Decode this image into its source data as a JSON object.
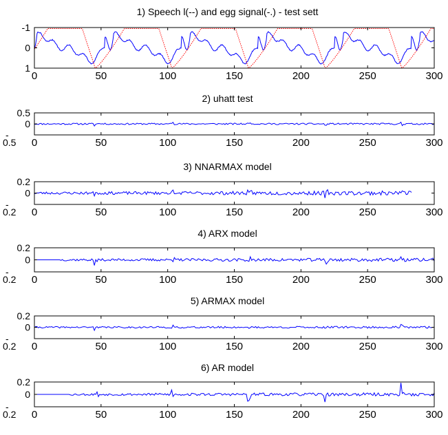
{
  "chart_data": [
    {
      "type": "line",
      "title": "1) Speech l(--) and egg signal(-.) - test sett",
      "xlim": [
        0,
        300
      ],
      "ylim": [
        -1,
        1
      ],
      "xticks": [
        "0",
        "50",
        "100",
        "150",
        "200",
        "250",
        "300"
      ],
      "yticks": [
        "-1",
        "0",
        "1"
      ],
      "series": [
        {
          "color": "#0000ff",
          "style": "solid",
          "kind": "speech",
          "period": 57.5,
          "phase": 0,
          "amplitude": 0.9
        },
        {
          "color": "#ff0000",
          "style": "dotted",
          "kind": "egg",
          "period": 57.5,
          "phase": 10,
          "amplitude": 1.0
        }
      ]
    },
    {
      "type": "line",
      "title": "2) uhatt test",
      "xlim": [
        0,
        300
      ],
      "ylim": [
        -0.5,
        0.5
      ],
      "xticks": [
        "0",
        "50",
        "100",
        "150",
        "200",
        "250",
        "300"
      ],
      "yticks": [
        "0.5",
        "0",
        "-"
      ],
      "ytick_bottom_extra": "0.5",
      "series": [
        {
          "color": "#0000ff",
          "style": "solid",
          "kind": "residual",
          "x_end": 300,
          "noise": 0.035,
          "spike": 0.12,
          "start_quiet": 0,
          "growth": 0.0,
          "seed": 11
        }
      ]
    },
    {
      "type": "line",
      "title": "3) NNARMAX model",
      "xlim": [
        0,
        300
      ],
      "ylim": [
        -0.2,
        0.2
      ],
      "xticks": [
        "0",
        "50",
        "100",
        "150",
        "200",
        "250",
        "300"
      ],
      "yticks": [
        "0.2",
        "0",
        "-"
      ],
      "ytick_bottom_extra": "0.2",
      "series": [
        {
          "color": "#0000ff",
          "style": "solid",
          "kind": "residual",
          "x_end": 283,
          "noise": 0.022,
          "spike": 0.06,
          "start_quiet": 0,
          "growth": 0.8,
          "seed": 23
        }
      ]
    },
    {
      "type": "line",
      "title": "4) ARX model",
      "xlim": [
        0,
        300
      ],
      "ylim": [
        -0.2,
        0.2
      ],
      "xticks": [
        "0",
        "50",
        "100",
        "150",
        "200",
        "250",
        "300"
      ],
      "yticks": [
        "0.2",
        "0",
        "-"
      ],
      "ytick_bottom_extra": "0.2",
      "series": [
        {
          "color": "#0000ff",
          "style": "solid",
          "kind": "residual",
          "x_end": 300,
          "noise": 0.018,
          "spike": 0.09,
          "start_quiet": 20,
          "growth": 0.6,
          "seed": 37
        }
      ]
    },
    {
      "type": "line",
      "title": "5) ARMAX model",
      "xlim": [
        0,
        300
      ],
      "ylim": [
        -0.2,
        0.2
      ],
      "xticks": [
        "0",
        "50",
        "100",
        "150",
        "200",
        "250",
        "300"
      ],
      "yticks": [
        "0.2",
        "0",
        "-"
      ],
      "ytick_bottom_extra": "0.2",
      "series": [
        {
          "color": "#0000ff",
          "style": "solid",
          "kind": "residual",
          "x_end": 300,
          "noise": 0.014,
          "spike": 0.05,
          "start_quiet": 0,
          "growth": 0.3,
          "seed": 41
        }
      ]
    },
    {
      "type": "line",
      "title": "6) AR model",
      "xlim": [
        0,
        300
      ],
      "ylim": [
        -0.2,
        0.2
      ],
      "xticks": [
        "0",
        "50",
        "100",
        "150",
        "200",
        "250",
        "300"
      ],
      "yticks": [
        "0.2",
        "0",
        "-"
      ],
      "ytick_bottom_extra": "0.2",
      "series": [
        {
          "color": "#0000ff",
          "style": "solid",
          "kind": "residual",
          "x_end": 300,
          "noise": 0.016,
          "spike": 0.12,
          "start_quiet": 27,
          "growth": 0.7,
          "seed": 53
        }
      ]
    }
  ]
}
